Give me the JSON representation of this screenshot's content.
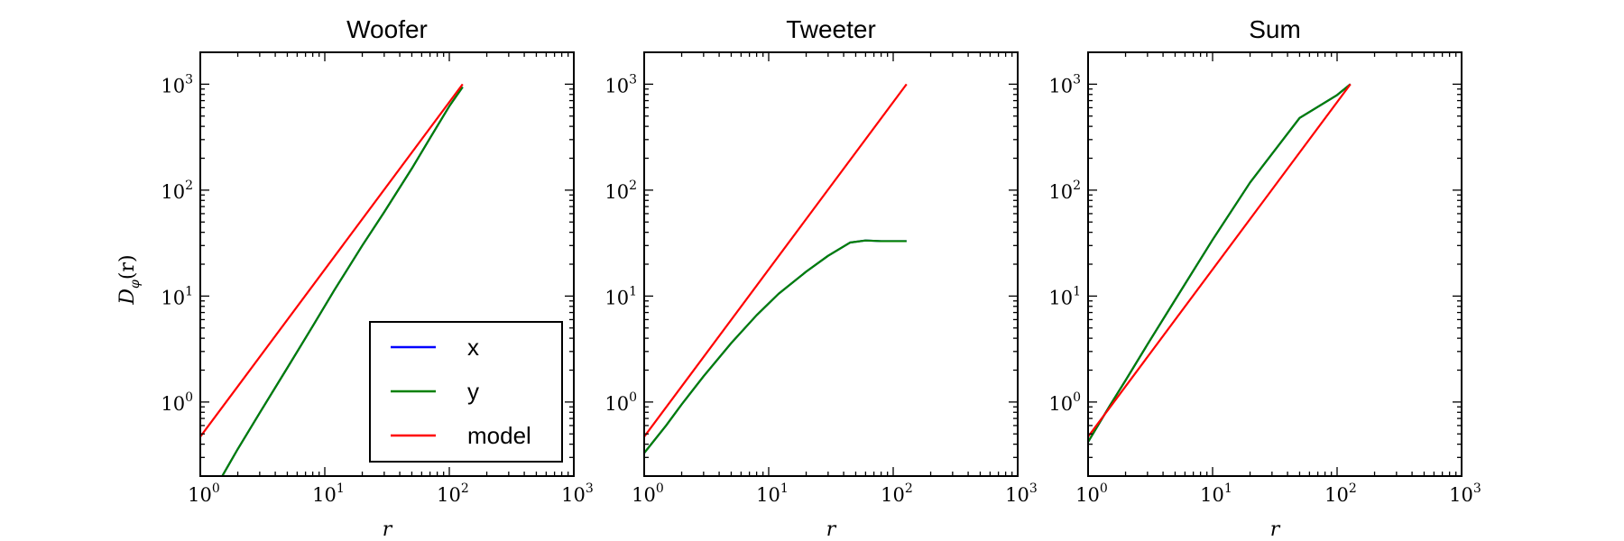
{
  "figure": {
    "ylabel_math": {
      "base": "D",
      "sub": "φ",
      "args": "(r)"
    },
    "legend": {
      "panel": 0,
      "location": "lower-right"
    }
  },
  "chart_data": [
    {
      "type": "line",
      "title": "Woofer",
      "xlabel": "r",
      "ylabel": "D_φ(r)",
      "xscale": "log",
      "yscale": "log",
      "xlim": [
        1,
        1000
      ],
      "ylim": [
        0.2,
        2000
      ],
      "xticks": [
        1,
        10,
        100,
        1000
      ],
      "yticks": [
        1,
        10,
        100,
        1000
      ],
      "series": [
        {
          "name": "x",
          "color": "#0000ff",
          "x": [
            1.5,
            2,
            3,
            5,
            8,
            12,
            20,
            30,
            50,
            70,
            100,
            128
          ],
          "y": [
            0.2,
            0.36,
            0.79,
            2.1,
            5.2,
            11.5,
            30,
            62,
            160,
            310,
            620,
            940
          ]
        },
        {
          "name": "y",
          "color": "#008000",
          "x": [
            1.5,
            2,
            3,
            5,
            8,
            12,
            20,
            30,
            50,
            70,
            100,
            128
          ],
          "y": [
            0.2,
            0.36,
            0.79,
            2.1,
            5.2,
            11.5,
            30,
            62,
            160,
            310,
            620,
            940
          ]
        },
        {
          "name": "model",
          "color": "#ff0000",
          "x": [
            1,
            128
          ],
          "y": [
            0.47,
            1000
          ]
        }
      ]
    },
    {
      "type": "line",
      "title": "Tweeter",
      "xlabel": "r",
      "xscale": "log",
      "yscale": "log",
      "xlim": [
        1,
        1000
      ],
      "ylim": [
        0.2,
        2000
      ],
      "xticks": [
        1,
        10,
        100,
        1000
      ],
      "yticks": [
        1,
        10,
        100,
        1000
      ],
      "series": [
        {
          "name": "x",
          "color": "#0000ff",
          "x": [
            1,
            1.5,
            2,
            3,
            5,
            8,
            12,
            20,
            30,
            45,
            60,
            80,
            100,
            128
          ],
          "y": [
            0.33,
            0.6,
            0.95,
            1.75,
            3.6,
            6.6,
            10.5,
            17,
            24,
            32,
            33.5,
            33,
            33,
            33
          ]
        },
        {
          "name": "y",
          "color": "#008000",
          "x": [
            1,
            1.5,
            2,
            3,
            5,
            8,
            12,
            20,
            30,
            45,
            60,
            80,
            100,
            128
          ],
          "y": [
            0.33,
            0.6,
            0.95,
            1.75,
            3.6,
            6.6,
            10.5,
            17,
            24,
            32,
            33.5,
            33,
            33,
            33
          ]
        },
        {
          "name": "model",
          "color": "#ff0000",
          "x": [
            1,
            128
          ],
          "y": [
            0.47,
            1000
          ]
        }
      ]
    },
    {
      "type": "line",
      "title": "Sum",
      "xlabel": "r",
      "xscale": "log",
      "yscale": "log",
      "xlim": [
        1,
        1000
      ],
      "ylim": [
        0.2,
        2000
      ],
      "xticks": [
        1,
        10,
        100,
        1000
      ],
      "yticks": [
        1,
        10,
        100,
        1000
      ],
      "series": [
        {
          "name": "x",
          "color": "#0000ff",
          "x": [
            1,
            1.5,
            2,
            3,
            5,
            10,
            20,
            50,
            100,
            128
          ],
          "y": [
            0.42,
            0.93,
            1.6,
            3.5,
            9.2,
            34,
            118,
            480,
            790,
            1000
          ]
        },
        {
          "name": "y",
          "color": "#008000",
          "x": [
            1,
            1.5,
            2,
            3,
            5,
            10,
            20,
            50,
            100,
            128
          ],
          "y": [
            0.42,
            0.93,
            1.6,
            3.5,
            9.2,
            34,
            118,
            480,
            790,
            1000
          ]
        },
        {
          "name": "model",
          "color": "#ff0000",
          "x": [
            1,
            128
          ],
          "y": [
            0.47,
            1000
          ]
        }
      ]
    }
  ]
}
